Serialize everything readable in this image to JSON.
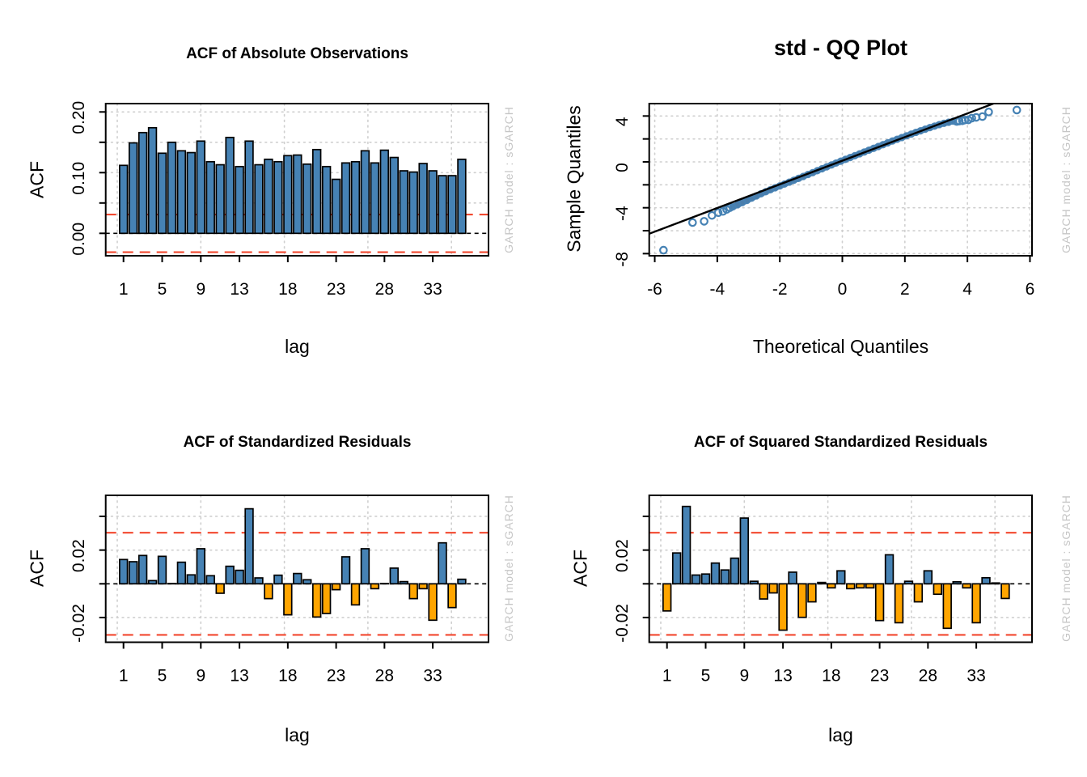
{
  "watermark": "GARCH model :  sGARCH",
  "colors": {
    "bar_positive": "#4682B4",
    "bar_negative": "#FFA500",
    "bar_outline": "#000000",
    "confidence_dashed": "#F2482F",
    "zero_dashed": "#000000",
    "gridline": "#cfcfcf",
    "qq_point": "#4682B4",
    "qq_band_fill": "#4a7dab",
    "qq_line": "#000000",
    "watermark_text": "#c6c6c6"
  },
  "chart_data": [
    {
      "id": "acf-absolute-observations",
      "type": "bar",
      "title": "ACF of Absolute Observations",
      "xlabel": "lag",
      "ylabel": "ACF",
      "watermark": "GARCH model :  sGARCH",
      "lags": [
        1,
        2,
        3,
        4,
        5,
        6,
        7,
        8,
        9,
        10,
        11,
        12,
        13,
        14,
        15,
        16,
        17,
        18,
        19,
        20,
        21,
        22,
        23,
        24,
        25,
        26,
        27,
        28,
        29,
        30,
        31,
        32,
        33,
        34,
        35,
        36
      ],
      "values": [
        0.112,
        0.149,
        0.166,
        0.174,
        0.132,
        0.15,
        0.136,
        0.133,
        0.152,
        0.118,
        0.113,
        0.158,
        0.11,
        0.152,
        0.113,
        0.122,
        0.118,
        0.128,
        0.129,
        0.114,
        0.138,
        0.11,
        0.089,
        0.116,
        0.118,
        0.136,
        0.116,
        0.137,
        0.125,
        0.103,
        0.101,
        0.115,
        0.103,
        0.095,
        0.095,
        0.122
      ],
      "conf_band": 0.031,
      "ylim": [
        -0.037,
        0.214
      ],
      "grid": true,
      "yticks": [
        {
          "v": 0.2,
          "label": "0.20"
        },
        {
          "v": 0.15,
          "label": ""
        },
        {
          "v": 0.1,
          "label": "0.10"
        },
        {
          "v": 0.05,
          "label": ""
        },
        {
          "v": 0.0,
          "label": "0.00"
        }
      ],
      "xticks": [
        1,
        5,
        9,
        13,
        18,
        23,
        28,
        33
      ]
    },
    {
      "id": "qq-plot",
      "type": "scatter",
      "title": "std - QQ Plot",
      "xlabel": "Theoretical Quantiles",
      "ylabel": "Sample Quantiles",
      "watermark": "GARCH model :  sGARCH",
      "xlim": [
        -6.2,
        6.06
      ],
      "ylim": [
        -8.2,
        5.13
      ],
      "grid": true,
      "xticks": [
        -6,
        -4,
        -2,
        0,
        2,
        4,
        6
      ],
      "yticks": [
        {
          "v": 4,
          "label": "4"
        },
        {
          "v": 2,
          "label": ""
        },
        {
          "v": 0,
          "label": "0"
        },
        {
          "v": -2,
          "label": ""
        },
        {
          "v": -4,
          "label": "-4"
        },
        {
          "v": -6,
          "label": ""
        },
        {
          "v": -8,
          "label": "-8"
        }
      ],
      "line": {
        "x1": -6.2,
        "y1": -6.29,
        "x2": 4.88,
        "y2": 5.13
      },
      "band_points": [
        [
          -3.5,
          -3.92
        ],
        [
          -3.35,
          -3.74
        ],
        [
          -3.2,
          -3.55
        ],
        [
          -3.05,
          -3.36
        ],
        [
          -2.9,
          -3.16
        ],
        [
          -2.75,
          -2.97
        ],
        [
          -2.6,
          -2.78
        ],
        [
          -2.45,
          -2.6
        ],
        [
          -2.3,
          -2.43
        ],
        [
          -2.15,
          -2.26
        ],
        [
          -2.0,
          -2.1
        ],
        [
          -1.85,
          -1.93
        ],
        [
          -1.7,
          -1.77
        ],
        [
          -1.55,
          -1.6
        ],
        [
          -1.4,
          -1.44
        ],
        [
          -1.25,
          -1.27
        ],
        [
          -1.1,
          -1.1
        ],
        [
          -0.95,
          -0.94
        ],
        [
          -0.8,
          -0.77
        ],
        [
          -0.65,
          -0.6
        ],
        [
          -0.5,
          -0.43
        ],
        [
          -0.35,
          -0.27
        ],
        [
          -0.2,
          -0.1
        ],
        [
          -0.05,
          0.06
        ],
        [
          0.1,
          0.22
        ],
        [
          0.25,
          0.38
        ],
        [
          0.4,
          0.54
        ],
        [
          0.55,
          0.7
        ],
        [
          0.7,
          0.86
        ],
        [
          0.85,
          1.02
        ],
        [
          1.0,
          1.18
        ],
        [
          1.15,
          1.34
        ],
        [
          1.3,
          1.5
        ],
        [
          1.45,
          1.66
        ],
        [
          1.6,
          1.82
        ],
        [
          1.75,
          1.97
        ],
        [
          1.9,
          2.12
        ],
        [
          2.05,
          2.27
        ],
        [
          2.2,
          2.42
        ],
        [
          2.35,
          2.57
        ],
        [
          2.5,
          2.71
        ],
        [
          2.65,
          2.85
        ],
        [
          2.8,
          2.99
        ],
        [
          2.95,
          3.12
        ],
        [
          3.1,
          3.25
        ],
        [
          3.25,
          3.36
        ],
        [
          3.4,
          3.46
        ],
        [
          3.55,
          3.55
        ]
      ],
      "tail_points": [
        [
          -5.72,
          -7.7
        ],
        [
          -4.79,
          -5.29
        ],
        [
          -4.42,
          -5.18
        ],
        [
          -4.17,
          -4.67
        ],
        [
          -3.97,
          -4.43
        ],
        [
          -3.82,
          -4.32
        ],
        [
          -3.7,
          -4.15
        ],
        [
          -3.6,
          -4.0
        ],
        [
          3.66,
          3.52
        ],
        [
          3.74,
          3.56
        ],
        [
          3.84,
          3.58
        ],
        [
          3.92,
          3.65
        ],
        [
          4.03,
          3.66
        ],
        [
          4.14,
          3.81
        ],
        [
          4.28,
          3.88
        ],
        [
          4.48,
          3.95
        ],
        [
          4.68,
          4.35
        ],
        [
          5.58,
          4.52
        ]
      ]
    },
    {
      "id": "acf-standardized-residuals",
      "type": "bar",
      "title": "ACF of Standardized Residuals",
      "xlabel": "lag",
      "ylabel": "ACF",
      "watermark": "GARCH model :  sGARCH",
      "lags": [
        1,
        2,
        3,
        4,
        5,
        6,
        7,
        8,
        9,
        10,
        11,
        12,
        13,
        14,
        15,
        16,
        17,
        18,
        19,
        20,
        21,
        22,
        23,
        24,
        25,
        26,
        27,
        28,
        29,
        30,
        31,
        32,
        33,
        34,
        35,
        36
      ],
      "values": [
        0.0144,
        0.0131,
        0.0168,
        0.0019,
        0.0163,
        0.0002,
        0.0128,
        0.0053,
        0.0208,
        0.0048,
        -0.0056,
        0.0104,
        0.008,
        0.0445,
        0.0035,
        -0.0088,
        0.0051,
        -0.0184,
        0.0061,
        0.0024,
        -0.0197,
        -0.0176,
        -0.0035,
        0.016,
        -0.0125,
        0.0208,
        -0.0029,
        0.0002,
        0.0093,
        0.0013,
        -0.0088,
        -0.0029,
        -0.0216,
        0.0243,
        -0.0141,
        0.0027
      ],
      "conf_band": 0.0303,
      "ylim": [
        -0.035,
        0.0525
      ],
      "grid": true,
      "yticks": [
        {
          "v": 0.04,
          "label": ""
        },
        {
          "v": 0.02,
          "label": "0.02"
        },
        {
          "v": 0.0,
          "label": ""
        },
        {
          "v": -0.02,
          "label": "-0.02"
        }
      ],
      "xticks": [
        1,
        5,
        9,
        13,
        18,
        23,
        28,
        33
      ]
    },
    {
      "id": "acf-squared-standardized-residuals",
      "type": "bar",
      "title": "ACF of Squared Standardized Residuals",
      "xlabel": "lag",
      "ylabel": "ACF",
      "watermark": "GARCH model :  sGARCH",
      "lags": [
        1,
        2,
        3,
        4,
        5,
        6,
        7,
        8,
        9,
        10,
        11,
        12,
        13,
        14,
        15,
        16,
        17,
        18,
        19,
        20,
        21,
        22,
        23,
        24,
        25,
        26,
        27,
        28,
        29,
        30,
        31,
        32,
        33,
        34,
        35,
        36
      ],
      "values": [
        -0.0161,
        0.0183,
        0.0459,
        0.0052,
        0.0058,
        0.0123,
        0.0082,
        0.0152,
        0.039,
        0.0015,
        -0.009,
        -0.0054,
        -0.0275,
        0.0069,
        -0.0199,
        -0.0107,
        0.0008,
        -0.0024,
        0.0077,
        -0.0029,
        -0.0024,
        -0.0024,
        -0.0218,
        0.0172,
        -0.0231,
        0.0015,
        -0.0107,
        0.0077,
        -0.0062,
        -0.0264,
        0.0012,
        -0.0024,
        -0.0231,
        0.0036,
        0.0005,
        -0.0087
      ],
      "conf_band": 0.0303,
      "ylim": [
        -0.035,
        0.0525
      ],
      "grid": true,
      "yticks": [
        {
          "v": 0.04,
          "label": ""
        },
        {
          "v": 0.02,
          "label": "0.02"
        },
        {
          "v": 0.0,
          "label": ""
        },
        {
          "v": -0.02,
          "label": "-0.02"
        }
      ],
      "xticks": [
        1,
        5,
        9,
        13,
        18,
        23,
        28,
        33
      ]
    }
  ]
}
